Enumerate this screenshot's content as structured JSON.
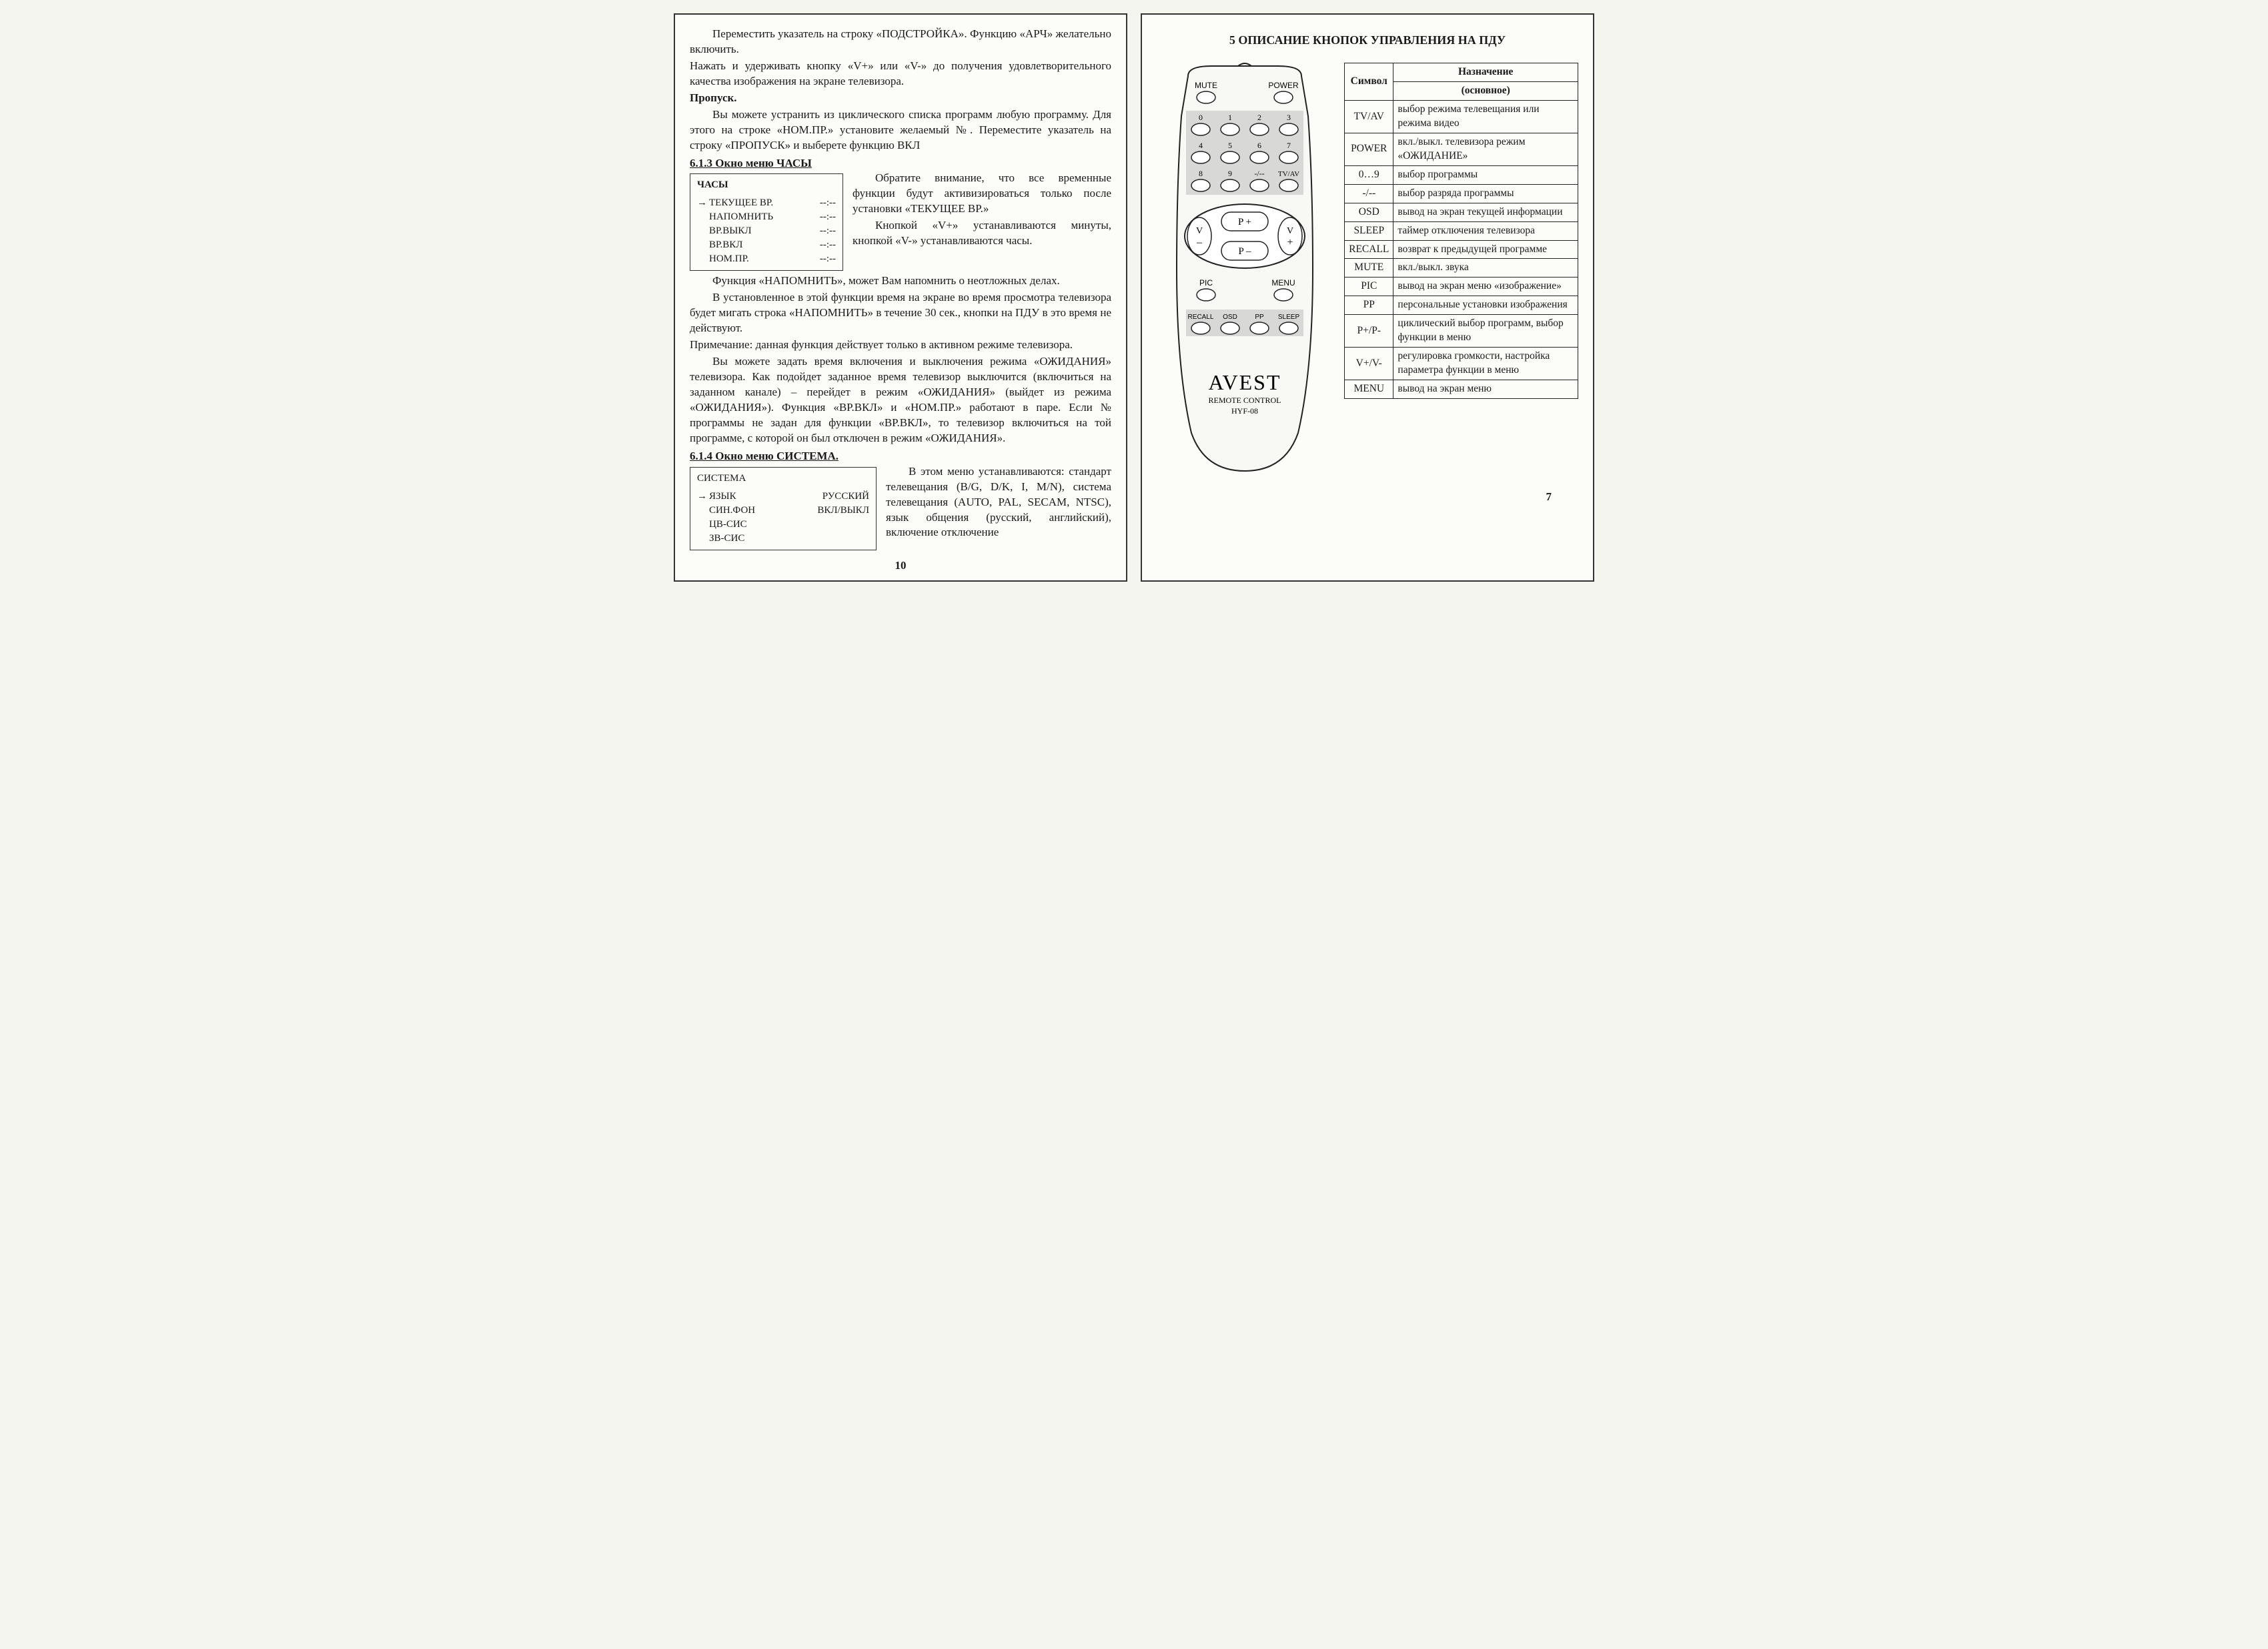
{
  "left": {
    "p1": "Переместить указатель на строку «ПОДСТРОЙКА». Функцию «АРЧ» желательно включить.",
    "p2": "Нажать и удерживать кнопку «V+» или «V-» до получения удовлетворительного качества изображения на экране телевизора.",
    "p3_head": "Пропуск.",
    "p4": "Вы можете устранить из циклического списка программ любую программу. Для этого на строке «НОМ.ПР.» установите желаемый №. Переместите указатель на строку «ПРОПУСК» и выберете функцию ВКЛ",
    "sec613": "6.1.3 Окно меню ЧАСЫ",
    "clock_menu": {
      "title": "ЧАСЫ",
      "rows": [
        {
          "arrow": "→",
          "label": "ТЕКУЩЕЕ ВР.",
          "val": "--:--"
        },
        {
          "arrow": "",
          "label": "НАПОМНИТЬ",
          "val": "--:--"
        },
        {
          "arrow": "",
          "label": "ВР.ВЫКЛ",
          "val": "--:--"
        },
        {
          "arrow": "",
          "label": "ВР.ВКЛ",
          "val": "--:--"
        },
        {
          "arrow": "",
          "label": "НОМ.ПР.",
          "val": "--:--"
        }
      ]
    },
    "clock_text1": "Обратите внимание, что все временные функции будут активизироваться только после установки «ТЕКУЩЕЕ ВР.»",
    "clock_text2": "Кнопкой «V+» устанавливаются минуты, кнопкой «V-» устанавливаются часы.",
    "p5": "Функция «НАПОМНИТЬ», может Вам напомнить о неотложных делах.",
    "p6": "В установленное в этой функции время на экране во время просмотра телевизора будет мигать строка «НАПОМНИТЬ» в течение 30 сек., кнопки на ПДУ в это время не действуют.",
    "p7": "Примечание: данная функция действует только в активном режиме телевизора.",
    "p8": "Вы можете задать время включения и выключения режима «ОЖИДАНИЯ» телевизора. Как подойдет заданное время телевизор выключится (включиться на заданном канале) – перейдет в режим «ОЖИДАНИЯ» (выйдет из режима «ОЖИДАНИЯ»). Функция «ВР.ВКЛ» и «НОМ.ПР.» работают в паре. Если № программы не задан для функции «ВР.ВКЛ», то телевизор включиться на той программе, с которой он был отключен в режим «ОЖИДАНИЯ».",
    "sec614": "6.1.4 Окно меню СИСТЕМА.",
    "system_menu": {
      "title": "СИСТЕМА",
      "rows": [
        {
          "arrow": "→",
          "label": "ЯЗЫК",
          "val": "РУССКИЙ"
        },
        {
          "arrow": "",
          "label": "СИН.ФОН",
          "val": "ВКЛ/ВЫКЛ"
        },
        {
          "arrow": "",
          "label": "ЦВ-СИС",
          "val": ""
        },
        {
          "arrow": "",
          "label": "ЗВ-СИС",
          "val": ""
        }
      ]
    },
    "sys_text": "В этом меню устанавливаются: стандарт телевещания (B/G, D/K, I, M/N), система телевещания (AUTO, PAL, SECAM, NTSC), язык общения (русский, английский), включение отключение",
    "pagenum": "10"
  },
  "right": {
    "title": "5 ОПИСАНИЕ КНОПОК УПРАВЛЕНИЯ НА ПДУ",
    "remote": {
      "brand": "AVEST",
      "sub1": "REMOTE CONTROL",
      "model": "HYF-08",
      "top_labels": {
        "mute": "MUTE",
        "power": "POWER"
      },
      "digits": [
        "0",
        "1",
        "2",
        "3",
        "4",
        "5",
        "6",
        "7",
        "8",
        "9"
      ],
      "dash": "-/--",
      "tvav": "TV/AV",
      "nav": {
        "vminus": "V",
        "vplus": "V",
        "pplus": "P +",
        "pminus": "P –",
        "minus": "–",
        "plus": "+"
      },
      "mid_labels": {
        "pic": "PIC",
        "menu": "MENU"
      },
      "bottom_labels": [
        "RECALL",
        "OSD",
        "PP",
        "SLEEP"
      ],
      "colors": {
        "shade": "#d8d8d6",
        "body": "#f8f8f4",
        "stroke": "#222"
      }
    },
    "table": {
      "head_symbol": "Символ",
      "head_purpose": "Назначение",
      "head_sub": "(основное)",
      "rows": [
        {
          "sym": "TV/AV",
          "desc": "выбор режима телевещания или режима видео"
        },
        {
          "sym": "POWER",
          "desc": "вкл./выкл. телевизора режим «ОЖИДАНИЕ»"
        },
        {
          "sym": "0…9",
          "desc": "выбор программы"
        },
        {
          "sym": "-/--",
          "desc": "выбор разряда программы"
        },
        {
          "sym": "OSD",
          "desc": "вывод на экран текущей информации"
        },
        {
          "sym": "SLEEP",
          "desc": "таймер отключения телевизора"
        },
        {
          "sym": "RECALL",
          "desc": "возврат к предыдущей программе"
        },
        {
          "sym": "MUTE",
          "desc": "вкл./выкл. звука"
        },
        {
          "sym": "PIC",
          "desc": "вывод на экран меню «изображение»"
        },
        {
          "sym": "PP",
          "desc": "персональные установки изображения"
        },
        {
          "sym": "P+/P-",
          "desc": "циклический выбор программ, выбор функции в меню"
        },
        {
          "sym": "V+/V-",
          "desc": "регулировка громкости, настройка параметра функции в меню"
        },
        {
          "sym": "MENU",
          "desc": "вывод на экран меню"
        }
      ]
    },
    "pagenum": "7"
  }
}
